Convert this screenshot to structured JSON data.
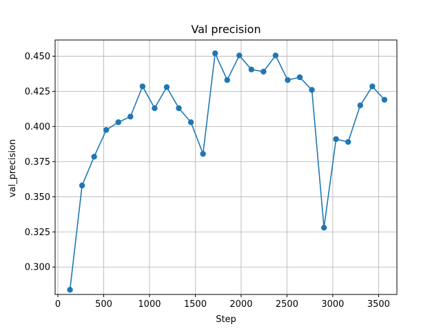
{
  "chart_data": {
    "type": "line",
    "title": "Val precision",
    "xlabel": "Step",
    "ylabel": "val_precision",
    "xlim": [
      -30,
      3700
    ],
    "ylim": [
      0.2805,
      0.4615
    ],
    "xticks": [
      0,
      500,
      1000,
      1500,
      2000,
      2500,
      3000,
      3500
    ],
    "xtick_labels": [
      "0",
      "500",
      "1000",
      "1500",
      "2000",
      "2500",
      "3000",
      "3500"
    ],
    "yticks": [
      0.3,
      0.325,
      0.35,
      0.375,
      0.4,
      0.425,
      0.45
    ],
    "ytick_labels": [
      "0.300",
      "0.325",
      "0.350",
      "0.375",
      "0.400",
      "0.425",
      "0.450"
    ],
    "grid": true,
    "color": "#1f77b4",
    "series": [
      {
        "x": [
          132,
          264,
          396,
          528,
          660,
          792,
          924,
          1056,
          1188,
          1320,
          1452,
          1584,
          1716,
          1848,
          1980,
          2112,
          2244,
          2376,
          2508,
          2640,
          2772,
          2904,
          3036,
          3168,
          3300,
          3432,
          3564
        ],
        "values": [
          0.2838,
          0.358,
          0.3785,
          0.3975,
          0.403,
          0.407,
          0.4285,
          0.413,
          0.428,
          0.413,
          0.403,
          0.3805,
          0.452,
          0.433,
          0.4505,
          0.4405,
          0.439,
          0.4505,
          0.433,
          0.435,
          0.426,
          0.328,
          0.391,
          0.389,
          0.415,
          0.4285,
          0.419
        ]
      }
    ]
  }
}
